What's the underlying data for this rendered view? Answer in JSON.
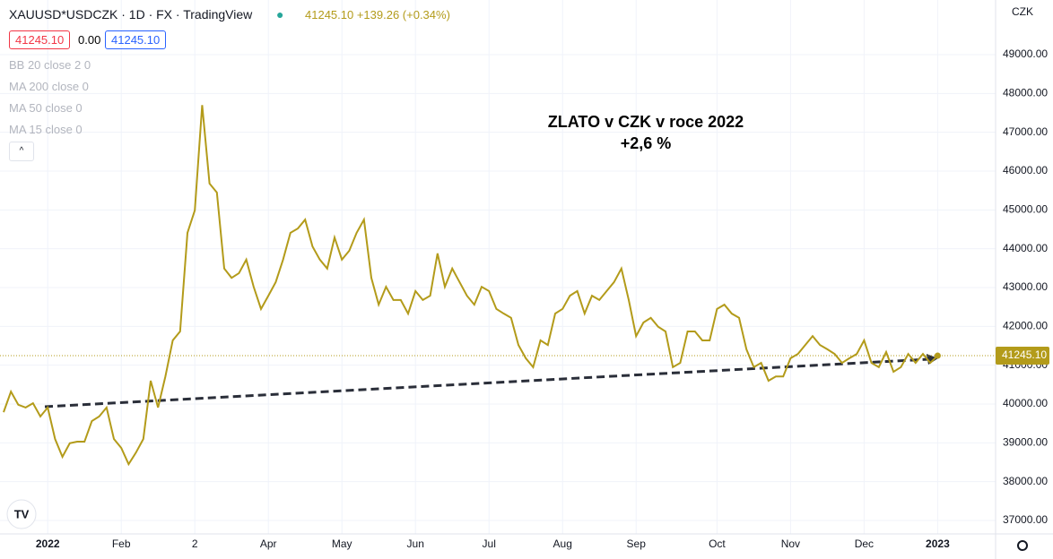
{
  "header": {
    "symbol": "XAUUSD*USDCZK · 1D · FX · TradingView",
    "quote": "41245.10 +139.26 (+0.34%)",
    "boxes": [
      "41245.10",
      "0.00",
      "41245.10"
    ],
    "indicators": [
      "BB 20 close 2 0",
      "MA 200 close 0",
      "MA 50 close 0",
      "MA 15 close 0"
    ]
  },
  "chart_data": {
    "type": "line",
    "y_label": "CZK",
    "annotations": [
      "ZLATO v CZK v roce 2022",
      "+2,6 %"
    ],
    "price_label": "41245.10",
    "color": "#b39b1a",
    "grid": true,
    "categories": [
      null,
      null,
      null,
      null,
      null,
      null,
      "2022",
      null,
      null,
      null,
      null,
      null,
      null,
      null,
      null,
      null,
      "Feb",
      null,
      null,
      null,
      null,
      null,
      null,
      null,
      null,
      null,
      "2",
      null,
      null,
      null,
      null,
      null,
      null,
      null,
      null,
      null,
      "Apr",
      null,
      null,
      null,
      null,
      null,
      null,
      null,
      null,
      null,
      "May",
      null,
      null,
      null,
      null,
      null,
      null,
      null,
      null,
      null,
      "Jun",
      null,
      null,
      null,
      null,
      null,
      null,
      null,
      null,
      null,
      "Jul",
      null,
      null,
      null,
      null,
      null,
      null,
      null,
      null,
      null,
      "Aug",
      null,
      null,
      null,
      null,
      null,
      null,
      null,
      null,
      null,
      "Sep",
      null,
      null,
      null,
      null,
      null,
      null,
      null,
      null,
      null,
      null,
      "Oct",
      null,
      null,
      null,
      null,
      null,
      null,
      null,
      null,
      null,
      "Nov",
      null,
      null,
      null,
      null,
      null,
      null,
      null,
      null,
      null,
      "Dec",
      null,
      null,
      null,
      null,
      null,
      null,
      null,
      null,
      null,
      "2023"
    ],
    "values": [
      39790,
      40320,
      39980,
      39910,
      40020,
      39680,
      39910,
      39100,
      38640,
      38990,
      39030,
      39030,
      39560,
      39680,
      39910,
      39100,
      38870,
      38450,
      38750,
      39100,
      40600,
      39910,
      40710,
      41640,
      41870,
      44410,
      44990,
      47700,
      45680,
      45450,
      43490,
      43250,
      43370,
      43720,
      43020,
      42450,
      42790,
      43140,
      43720,
      44410,
      44520,
      44750,
      44060,
      43720,
      43490,
      44290,
      43720,
      43950,
      44410,
      44750,
      43250,
      42560,
      43020,
      42680,
      42680,
      42330,
      42910,
      42680,
      42790,
      43880,
      43020,
      43490,
      43140,
      42790,
      42560,
      43020,
      42910,
      42450,
      42330,
      42220,
      41520,
      41180,
      40950,
      41640,
      41520,
      42330,
      42450,
      42790,
      42910,
      42330,
      42790,
      42680,
      42910,
      43140,
      43490,
      42680,
      41750,
      42100,
      42220,
      41990,
      41870,
      40950,
      41060,
      41870,
      41870,
      41640,
      41640,
      42450,
      42560,
      42330,
      42220,
      41410,
      40950,
      41060,
      40600,
      40710,
      40710,
      41180,
      41290,
      41520,
      41750,
      41520,
      41410,
      41290,
      41060,
      41180,
      41290,
      41640,
      41060,
      40950,
      41340,
      40830,
      40950,
      41290,
      41060,
      41290,
      41060,
      41245.1
    ],
    "ylim": [
      36654,
      50408
    ],
    "yticks": [
      {
        "value": 37000,
        "label": "37000.00"
      },
      {
        "value": 38000,
        "label": "38000.00"
      },
      {
        "value": 39000,
        "label": "39000.00"
      },
      {
        "value": 40000,
        "label": "40000.00"
      },
      {
        "value": 41000,
        "label": "41000.00"
      },
      {
        "value": 42000,
        "label": "42000.00"
      },
      {
        "value": 43000,
        "label": "43000.00"
      },
      {
        "value": 44000,
        "label": "44000.00"
      },
      {
        "value": 45000,
        "label": "45000.00"
      },
      {
        "value": 46000,
        "label": "46000.00"
      },
      {
        "value": 47000,
        "label": "47000.00"
      },
      {
        "value": 48000,
        "label": "48000.00"
      },
      {
        "value": 49000,
        "label": "49000.00"
      }
    ]
  }
}
